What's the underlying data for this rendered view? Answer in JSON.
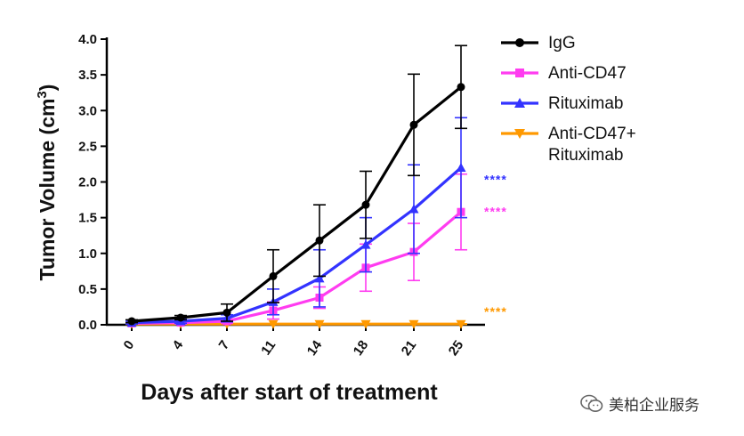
{
  "chart_data": {
    "type": "line",
    "title": "",
    "xlabel": "Days after start of treatment",
    "ylabel": "Tumor Volume (cm³)",
    "ylabel_main": "Tumor Volume (cm",
    "ylabel_sup": "3",
    "ylabel_close": ")",
    "categories": [
      "0",
      "4",
      "7",
      "11",
      "14",
      "18",
      "21",
      "25"
    ],
    "ylim": [
      0,
      4.0
    ],
    "yticks": [
      "0.0",
      "0.5",
      "1.0",
      "1.5",
      "2.0",
      "2.5",
      "3.0",
      "3.5",
      "4.0"
    ],
    "legend_position": "right",
    "grid": false,
    "series": [
      {
        "name": "IgG",
        "color": "#000000",
        "marker": "circle",
        "values": [
          0.05,
          0.1,
          0.17,
          0.68,
          1.18,
          1.68,
          2.8,
          3.33
        ],
        "errors": [
          0.02,
          0.03,
          0.12,
          0.37,
          0.5,
          0.47,
          0.71,
          0.58
        ]
      },
      {
        "name": "Anti-CD47",
        "color": "#ff3cf0",
        "marker": "square",
        "values": [
          0.02,
          0.03,
          0.05,
          0.2,
          0.38,
          0.8,
          1.02,
          1.58
        ],
        "errors": [
          0.01,
          0.02,
          0.03,
          0.12,
          0.15,
          0.33,
          0.4,
          0.53
        ]
      },
      {
        "name": "Rituximab",
        "color": "#3333ff",
        "marker": "triangle-up",
        "values": [
          0.03,
          0.05,
          0.09,
          0.32,
          0.65,
          1.12,
          1.62,
          2.2
        ],
        "errors": [
          0.02,
          0.03,
          0.05,
          0.18,
          0.4,
          0.38,
          0.62,
          0.7
        ]
      },
      {
        "name": "Anti-CD47+ Rituximab",
        "name_line1": "Anti-CD47+",
        "name_line2": "Rituximab",
        "color": "#ff9900",
        "marker": "triangle-down",
        "values": [
          0.01,
          0.01,
          0.01,
          0.01,
          0.01,
          0.01,
          0.01,
          0.01
        ],
        "errors": [
          0.005,
          0.005,
          0.005,
          0.005,
          0.005,
          0.005,
          0.005,
          0.005
        ]
      }
    ],
    "annotations": [
      {
        "text": "****",
        "color": "#3333ff",
        "y": 2.05
      },
      {
        "text": "****",
        "color": "#ff3cf0",
        "y": 1.6
      },
      {
        "text": "****",
        "color": "#ff9900",
        "y": 0.2
      }
    ]
  },
  "watermark": {
    "text": "美柏企业服务",
    "icon": "wechat-icon"
  }
}
